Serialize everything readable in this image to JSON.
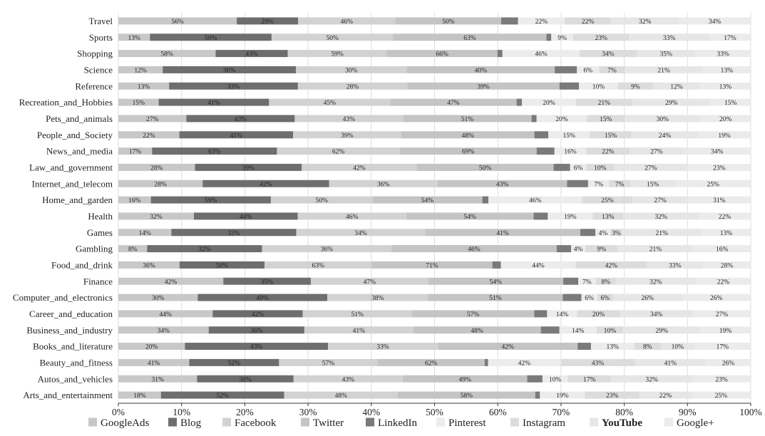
{
  "chart_data": {
    "type": "bar",
    "orientation": "horizontal",
    "stacked": true,
    "normalized": true,
    "categories": [
      "Travel",
      "Sports",
      "Shopping",
      "Science",
      "Reference",
      "Recreation_and_Hobbies",
      "Pets_and_animals",
      "People_and_Society",
      "News_and_media",
      "Law_and_government",
      "Internet_and_telecom",
      "Home_and_garden",
      "Health",
      "Games",
      "Gambling",
      "Food_and_drink",
      "Finance",
      "Computer_and_electronics",
      "Career_and_education",
      "Business_and_industry",
      "Books_and_literature",
      "Beauty_and_fitness",
      "Autos_and_vehicles",
      "Arts_and_entertainment"
    ],
    "series": [
      {
        "name": "GoogleAds",
        "color": "#c8c8c8",
        "values": [
          56,
          13,
          58,
          12,
          13,
          15,
          27,
          22,
          17,
          28,
          28,
          16,
          32,
          14,
          8,
          36,
          42,
          30,
          44,
          34,
          20,
          41,
          31,
          18
        ]
      },
      {
        "name": "Blog",
        "color": "#6e6e6e",
        "values": [
          29,
          50,
          43,
          36,
          33,
          41,
          43,
          41,
          63,
          39,
          42,
          59,
          44,
          33,
          32,
          50,
          35,
          49,
          42,
          36,
          43,
          52,
          38,
          52
        ]
      },
      {
        "name": "Facebook",
        "color": "#d2d2d2",
        "values": [
          46,
          50,
          59,
          30,
          28,
          45,
          43,
          39,
          62,
          42,
          36,
          50,
          46,
          34,
          36,
          63,
          47,
          38,
          51,
          41,
          33,
          57,
          43,
          48
        ]
      },
      {
        "name": "Twitter",
        "color": "#c4c4c4",
        "values": [
          50,
          63,
          66,
          40,
          39,
          47,
          51,
          48,
          69,
          50,
          43,
          54,
          54,
          41,
          46,
          71,
          54,
          51,
          57,
          48,
          42,
          62,
          49,
          58
        ]
      },
      {
        "name": "LinkedIn",
        "color": "#7a7a7a",
        "values": [
          8,
          2,
          3,
          6,
          5,
          2,
          2,
          5,
          9,
          6,
          7,
          3,
          6,
          4,
          4,
          5,
          6,
          7,
          6,
          7,
          4,
          2,
          6,
          2
        ]
      },
      {
        "name": "Pinterest",
        "color": "#ececec",
        "values": [
          22,
          9,
          46,
          6,
          10,
          20,
          20,
          15,
          16,
          6,
          7,
          46,
          19,
          4,
          4,
          44,
          7,
          6,
          14,
          14,
          13,
          42,
          10,
          19
        ]
      },
      {
        "name": "Instagram",
        "color": "#dcdcdc",
        "values": [
          22,
          23,
          34,
          7,
          9,
          21,
          15,
          15,
          22,
          10,
          7,
          25,
          13,
          3,
          9,
          42,
          8,
          6,
          20,
          10,
          8,
          43,
          17,
          23
        ]
      },
      {
        "name": "YouTube",
        "color": "#e6e6e6",
        "values": [
          32,
          33,
          35,
          21,
          12,
          29,
          30,
          24,
          27,
          27,
          15,
          27,
          32,
          21,
          21,
          33,
          32,
          26,
          34,
          29,
          10,
          41,
          32,
          22
        ]
      },
      {
        "name": "Google+",
        "color": "#ebebeb",
        "values": [
          34,
          17,
          33,
          13,
          13,
          15,
          20,
          19,
          34,
          23,
          25,
          31,
          22,
          13,
          16,
          28,
          22,
          26,
          27,
          19,
          17,
          26,
          23,
          25
        ]
      }
    ],
    "segment_labels": [
      [
        "56%",
        "29%",
        "46%",
        "50%",
        "",
        "22%",
        "22%",
        "32%",
        "34%"
      ],
      [
        "13%",
        "50%",
        "50%",
        "63%",
        "",
        "9%",
        "23%",
        "33%",
        "17%"
      ],
      [
        "58%",
        "43%",
        "59%",
        "66%",
        "",
        "46%",
        "34%",
        "35%",
        "33%"
      ],
      [
        "12%",
        "36%",
        "30%",
        "40%",
        "",
        "6%",
        "7%",
        "21%",
        "13%"
      ],
      [
        "13%",
        "33%",
        "28%",
        "39%",
        "",
        "10%",
        "9%",
        "12%",
        "13%"
      ],
      [
        "15%",
        "41%",
        "45%",
        "47%",
        "",
        "20%",
        "21%",
        "29%",
        "15%"
      ],
      [
        "27%",
        "43%",
        "43%",
        "51%",
        "",
        "20%",
        "15%",
        "30%",
        "20%"
      ],
      [
        "22%",
        "41%",
        "39%",
        "48%",
        "",
        "15%",
        "15%",
        "24%",
        "19%"
      ],
      [
        "17%",
        "63%",
        "62%",
        "69%",
        "",
        "16%",
        "22%",
        "27%",
        "34%"
      ],
      [
        "28%",
        "39%",
        "42%",
        "50%",
        "",
        "6%",
        "10%",
        "27%",
        "23%"
      ],
      [
        "28%",
        "42%",
        "36%",
        "43%",
        "",
        "7%",
        "7%",
        "15%",
        "25%"
      ],
      [
        "16%",
        "59%",
        "50%",
        "54%",
        "",
        "46%",
        "25%",
        "27%",
        "31%"
      ],
      [
        "32%",
        "44%",
        "46%",
        "54%",
        "",
        "19%",
        "13%",
        "32%",
        "22%"
      ],
      [
        "14%",
        "33%",
        "34%",
        "41%",
        "",
        "4%",
        "3%",
        "21%",
        "13%"
      ],
      [
        "8%",
        "32%",
        "36%",
        "46%",
        "",
        "4%",
        "9%",
        "21%",
        "16%"
      ],
      [
        "36%",
        "50%",
        "63%",
        "71%",
        "",
        "44%",
        "42%",
        "33%",
        "28%"
      ],
      [
        "42%",
        "35%",
        "47%",
        "54%",
        "",
        "7%",
        "8%",
        "32%",
        "22%"
      ],
      [
        "30%",
        "49%",
        "38%",
        "51%",
        "",
        "6%",
        "6%",
        "26%",
        "26%"
      ],
      [
        "44%",
        "42%",
        "51%",
        "57%",
        "",
        "14%",
        "20%",
        "34%",
        "27%"
      ],
      [
        "34%",
        "36%",
        "41%",
        "48%",
        "",
        "14%",
        "10%",
        "29%",
        "19%"
      ],
      [
        "20%",
        "43%",
        "33%",
        "42%",
        "",
        "13%",
        "8%",
        "10%",
        "17%"
      ],
      [
        "41%",
        "52%",
        "57%",
        "62%",
        "",
        "42%",
        "43%",
        "41%",
        "26%"
      ],
      [
        "31%",
        "38%",
        "43%",
        "49%",
        "",
        "10%",
        "17%",
        "32%",
        "23%"
      ],
      [
        "18%",
        "52%",
        "48%",
        "58%",
        "",
        "19%",
        "23%",
        "22%",
        "25%"
      ]
    ],
    "x_ticks": [
      "0%",
      "10%",
      "20%",
      "30%",
      "40%",
      "50%",
      "60%",
      "70%",
      "80%",
      "90%",
      "100%"
    ],
    "xlim": [
      0,
      100
    ],
    "legend": [
      {
        "name": "GoogleAds",
        "bold": false
      },
      {
        "name": "Blog",
        "bold": false
      },
      {
        "name": "Facebook",
        "bold": false
      },
      {
        "name": "Twitter",
        "bold": false
      },
      {
        "name": "LinkedIn",
        "bold": false
      },
      {
        "name": "Pinterest",
        "bold": false
      },
      {
        "name": "Instagram",
        "bold": false
      },
      {
        "name": "YouTube",
        "bold": true
      },
      {
        "name": "Google+",
        "bold": false
      }
    ],
    "legend_position": "bottom",
    "grid": true
  }
}
